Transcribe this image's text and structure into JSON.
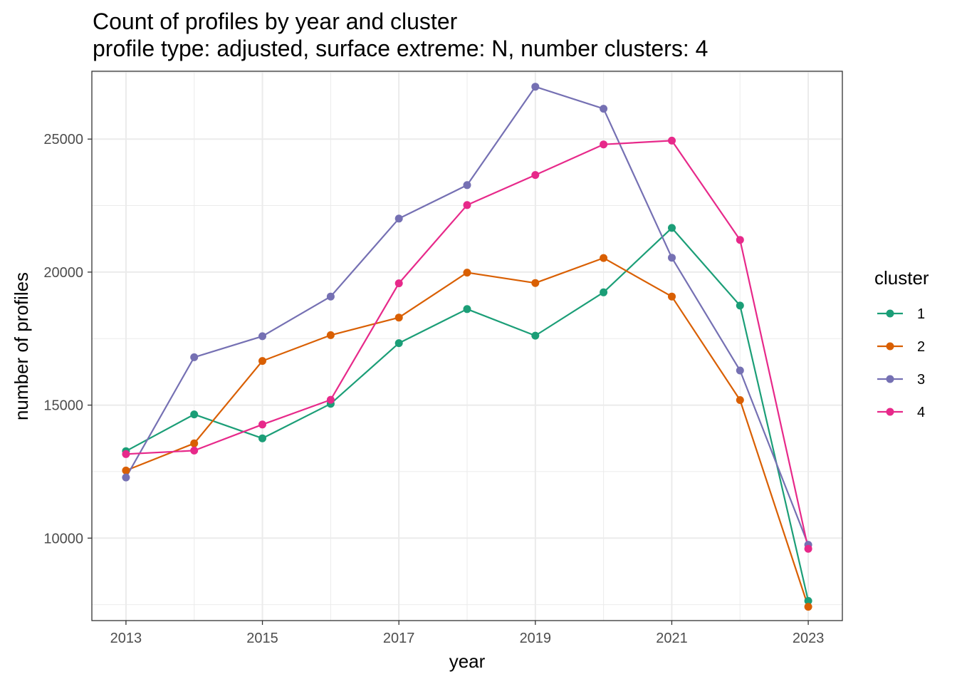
{
  "chart_data": {
    "type": "line",
    "title": "Count of profiles by year and cluster",
    "subtitle": "profile type: adjusted, surface extreme: N, number clusters: 4",
    "xlabel": "year",
    "ylabel": "number of profiles",
    "x": [
      2013,
      2014,
      2015,
      2016,
      2017,
      2018,
      2019,
      2020,
      2021,
      2022,
      2023
    ],
    "x_ticks": [
      2013,
      2015,
      2017,
      2019,
      2021,
      2023
    ],
    "y_ticks": [
      10000,
      15000,
      20000,
      25000
    ],
    "xlim": [
      2012.5,
      2023.5
    ],
    "ylim": [
      6900,
      27550
    ],
    "grid": true,
    "legend": {
      "title": "cluster",
      "position": "right"
    },
    "series": [
      {
        "name": "1",
        "color": "#1B9E77",
        "values": [
          13270,
          14650,
          13750,
          15050,
          17330,
          18610,
          17610,
          19240,
          21660,
          18740,
          7640
        ]
      },
      {
        "name": "2",
        "color": "#D95F02",
        "values": [
          12540,
          13560,
          16660,
          17630,
          18290,
          19980,
          19590,
          20530,
          19080,
          15190,
          7420
        ]
      },
      {
        "name": "3",
        "color": "#7570B3",
        "values": [
          12280,
          16800,
          17590,
          19080,
          22010,
          23270,
          26970,
          26140,
          20540,
          16300,
          9750
        ]
      },
      {
        "name": "4",
        "color": "#E7298A",
        "values": [
          13160,
          13290,
          14270,
          15200,
          19580,
          22520,
          23650,
          24800,
          24940,
          21210,
          9600
        ]
      }
    ]
  }
}
